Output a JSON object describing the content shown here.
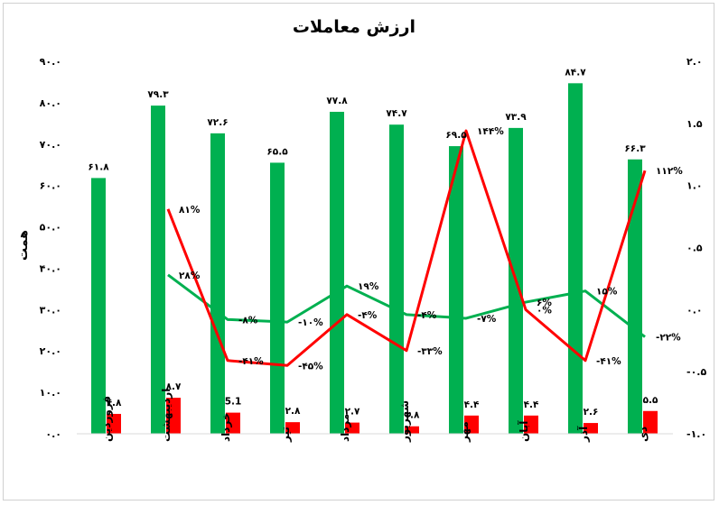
{
  "chart_data": {
    "type": "bar",
    "title": "ارزش معاملات",
    "ylabel": "همت",
    "categories": [
      "فروردین",
      "اردیبهشت",
      "خرداد",
      "تیر",
      "مرداد",
      "شهریور",
      "مهر",
      "آبان",
      "آذر",
      "دی"
    ],
    "ylim": [
      0,
      90
    ],
    "y_ticks": [
      "۰.۰",
      "۱۰.۰",
      "۲۰.۰",
      "۳۰.۰",
      "۴۰.۰",
      "۵۰.۰",
      "۶۰.۰",
      "۷۰.۰",
      "۸۰.۰",
      "۹۰.۰"
    ],
    "y2lim": [
      -1.0,
      2.0
    ],
    "y2_ticks": [
      "-۱.۰",
      "-۰.۵",
      "۰.۰",
      "۰.۵",
      "۱.۰",
      "۱.۵",
      "۲.۰"
    ],
    "bar_series": [
      {
        "color": "#00b050",
        "values": [
          61.8,
          79.3,
          72.6,
          65.5,
          77.8,
          74.7,
          69.5,
          73.9,
          84.7,
          66.3
        ],
        "labels": [
          "۶۱.۸",
          "۷۹.۳",
          "۷۲.۶",
          "۶۵.۵",
          "۷۷.۸",
          "۷۴.۷",
          "۶۹.۵",
          "۷۳.۹",
          "۸۴.۷",
          "۶۶.۳"
        ]
      },
      {
        "color": "#ff0000",
        "values": [
          4.8,
          8.7,
          5.1,
          2.8,
          2.7,
          1.8,
          4.4,
          4.4,
          2.6,
          5.5
        ],
        "labels": [
          "۴.۸",
          "۸.۷",
          "5.1",
          "۲.۸",
          "۲.۷",
          "۱.۸",
          "۴.۴",
          "۴.۴",
          "۲.۶",
          "۵.۵"
        ]
      }
    ],
    "line_series": [
      {
        "color": "#00b050",
        "axis": "secondary",
        "start_index": 1,
        "values": [
          0.28,
          -0.08,
          -0.1,
          0.19,
          -0.04,
          -0.07,
          0.06,
          0.15,
          -0.22
        ],
        "labels": [
          "۲۸%",
          "-۸%",
          "-۱۰%",
          "۱۹%",
          "-۴%",
          "-۷%",
          "۶%",
          "۱۵%",
          "-۲۲%"
        ]
      },
      {
        "color": "#ff0000",
        "axis": "secondary",
        "start_index": 1,
        "values": [
          0.81,
          -0.41,
          -0.45,
          -0.04,
          -0.33,
          1.44,
          0.0,
          -0.41,
          1.12
        ],
        "labels": [
          "۸۱%",
          "-۴۱%",
          "-۴۵%",
          "-۴%",
          "-۳۳%",
          "۱۴۴%",
          "۰%",
          "-۴۱%",
          "۱۱۲%"
        ]
      }
    ],
    "grid": false,
    "legend": "none"
  }
}
